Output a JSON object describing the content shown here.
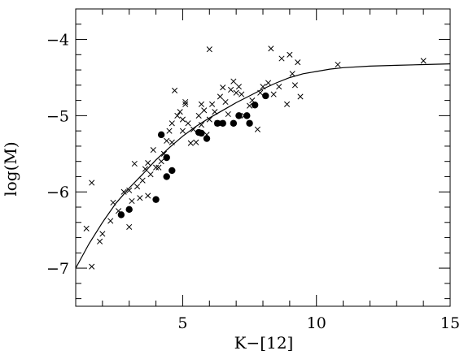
{
  "chart_data": {
    "type": "scatter",
    "title": "",
    "xlabel": "K−[12]",
    "ylabel": "log(M)",
    "xlim": [
      1,
      15
    ],
    "ylim": [
      -7.5,
      -3.6
    ],
    "xticks": [
      5,
      10,
      15
    ],
    "yticks": [
      -7,
      -6,
      -5,
      -4
    ],
    "xtick_labels": [
      "5",
      "10",
      "15"
    ],
    "ytick_labels": [
      "−7",
      "−6",
      "−5",
      "−4"
    ],
    "grid": false,
    "legend": "none",
    "series": [
      {
        "marker": "cross",
        "points": [
          [
            1.4,
            -6.48
          ],
          [
            1.6,
            -5.88
          ],
          [
            1.6,
            -6.98
          ],
          [
            1.9,
            -6.65
          ],
          [
            2.0,
            -6.55
          ],
          [
            2.3,
            -6.38
          ],
          [
            2.4,
            -6.14
          ],
          [
            2.6,
            -6.25
          ],
          [
            2.8,
            -6.0
          ],
          [
            3.0,
            -6.46
          ],
          [
            3.0,
            -5.98
          ],
          [
            3.1,
            -6.12
          ],
          [
            3.2,
            -5.63
          ],
          [
            3.3,
            -5.93
          ],
          [
            3.4,
            -6.08
          ],
          [
            3.5,
            -5.85
          ],
          [
            3.6,
            -5.7
          ],
          [
            3.7,
            -5.62
          ],
          [
            3.7,
            -6.05
          ],
          [
            3.8,
            -5.77
          ],
          [
            3.9,
            -5.45
          ],
          [
            4.0,
            -5.68
          ],
          [
            4.1,
            -5.68
          ],
          [
            4.2,
            -5.6
          ],
          [
            4.3,
            -5.5
          ],
          [
            4.4,
            -5.33
          ],
          [
            4.5,
            -5.2
          ],
          [
            4.6,
            -5.1
          ],
          [
            4.6,
            -5.35
          ],
          [
            4.7,
            -4.67
          ],
          [
            4.8,
            -5.0
          ],
          [
            4.9,
            -4.95
          ],
          [
            5.0,
            -5.05
          ],
          [
            5.0,
            -5.2
          ],
          [
            5.1,
            -4.85
          ],
          [
            5.1,
            -4.82
          ],
          [
            5.2,
            -5.1
          ],
          [
            5.3,
            -5.36
          ],
          [
            5.4,
            -5.18
          ],
          [
            5.5,
            -5.35
          ],
          [
            5.6,
            -5.0
          ],
          [
            5.7,
            -4.85
          ],
          [
            5.7,
            -5.12
          ],
          [
            5.8,
            -4.93
          ],
          [
            5.9,
            -5.25
          ],
          [
            6.0,
            -4.13
          ],
          [
            6.0,
            -5.05
          ],
          [
            6.1,
            -4.85
          ],
          [
            6.2,
            -4.95
          ],
          [
            6.3,
            -5.1
          ],
          [
            6.4,
            -4.75
          ],
          [
            6.5,
            -4.63
          ],
          [
            6.6,
            -4.82
          ],
          [
            6.7,
            -4.98
          ],
          [
            6.8,
            -4.66
          ],
          [
            6.9,
            -4.55
          ],
          [
            7.0,
            -4.7
          ],
          [
            7.1,
            -4.62
          ],
          [
            7.2,
            -4.72
          ],
          [
            7.3,
            -5.0
          ],
          [
            7.5,
            -4.87
          ],
          [
            7.6,
            -4.8
          ],
          [
            7.8,
            -5.18
          ],
          [
            7.9,
            -4.7
          ],
          [
            8.0,
            -4.62
          ],
          [
            8.2,
            -4.57
          ],
          [
            8.3,
            -4.12
          ],
          [
            8.4,
            -4.72
          ],
          [
            8.6,
            -4.62
          ],
          [
            8.7,
            -4.25
          ],
          [
            8.9,
            -4.85
          ],
          [
            9.0,
            -4.2
          ],
          [
            9.1,
            -4.45
          ],
          [
            9.2,
            -4.6
          ],
          [
            9.3,
            -4.3
          ],
          [
            9.4,
            -4.75
          ],
          [
            10.8,
            -4.33
          ],
          [
            14.0,
            -4.28
          ]
        ]
      },
      {
        "marker": "filled-circle",
        "points": [
          [
            2.7,
            -6.3
          ],
          [
            3.0,
            -6.23
          ],
          [
            4.0,
            -6.1
          ],
          [
            4.2,
            -5.25
          ],
          [
            4.4,
            -5.55
          ],
          [
            4.4,
            -5.8
          ],
          [
            4.6,
            -5.72
          ],
          [
            5.6,
            -5.22
          ],
          [
            5.7,
            -5.23
          ],
          [
            5.9,
            -5.3
          ],
          [
            6.3,
            -5.1
          ],
          [
            6.5,
            -5.1
          ],
          [
            6.9,
            -5.1
          ],
          [
            7.1,
            -5.0
          ],
          [
            7.4,
            -5.0
          ],
          [
            7.5,
            -5.1
          ],
          [
            7.7,
            -4.86
          ],
          [
            8.1,
            -4.74
          ]
        ]
      }
    ],
    "fit_curve": {
      "x": [
        1.0,
        1.5,
        2.0,
        2.5,
        3.0,
        3.5,
        4.0,
        4.5,
        5.0,
        5.5,
        6.0,
        6.5,
        7.0,
        7.5,
        8.0,
        8.5,
        9.0,
        9.5,
        10.0,
        10.5,
        11.0,
        12.0,
        13.0,
        14.0,
        15.0
      ],
      "y": [
        -7.0,
        -6.68,
        -6.4,
        -6.15,
        -5.95,
        -5.77,
        -5.58,
        -5.42,
        -5.27,
        -5.14,
        -5.03,
        -4.93,
        -4.83,
        -4.74,
        -4.65,
        -4.57,
        -4.5,
        -4.45,
        -4.42,
        -4.39,
        -4.37,
        -4.35,
        -4.34,
        -4.33,
        -4.32
      ]
    }
  }
}
